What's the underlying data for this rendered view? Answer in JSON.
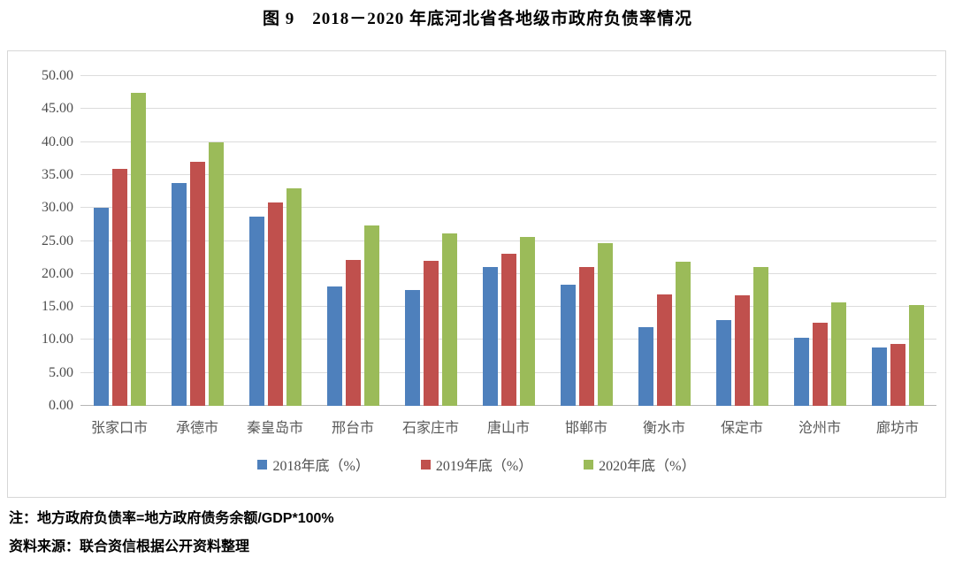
{
  "title": "图 9　2018－2020 年底河北省各地级市政府负债率情况",
  "note": "注：地方政府负债率=地方政府债务余额/GDP*100%",
  "source": "资料来源：联合资信根据公开资料整理",
  "chart_data": {
    "type": "bar",
    "title": "图 9　2018－2020 年底河北省各地级市政府负债率情况",
    "categories": [
      "张家口市",
      "承德市",
      "秦皇岛市",
      "邢台市",
      "石家庄市",
      "唐山市",
      "邯郸市",
      "衡水市",
      "保定市",
      "沧州市",
      "廊坊市"
    ],
    "series": [
      {
        "name": "2018年底（%）",
        "color": "#4E80BC",
        "values": [
          30.0,
          33.8,
          28.7,
          18.1,
          17.6,
          21.0,
          18.4,
          11.9,
          13.0,
          10.3,
          8.9
        ]
      },
      {
        "name": "2019年底（%）",
        "color": "#C0504D",
        "values": [
          35.9,
          37.0,
          30.8,
          22.1,
          22.0,
          23.0,
          21.0,
          16.9,
          16.8,
          12.6,
          9.4
        ]
      },
      {
        "name": "2020年底（%）",
        "color": "#9BBB59",
        "values": [
          47.5,
          39.9,
          33.0,
          27.4,
          26.2,
          25.6,
          24.7,
          21.8,
          21.1,
          15.7,
          15.3
        ]
      }
    ],
    "xlabel": "",
    "ylabel": "",
    "ylim": [
      0,
      50
    ],
    "ytick_step": 5,
    "ytick_decimals": 2,
    "grid": true,
    "legend_position": "bottom"
  }
}
